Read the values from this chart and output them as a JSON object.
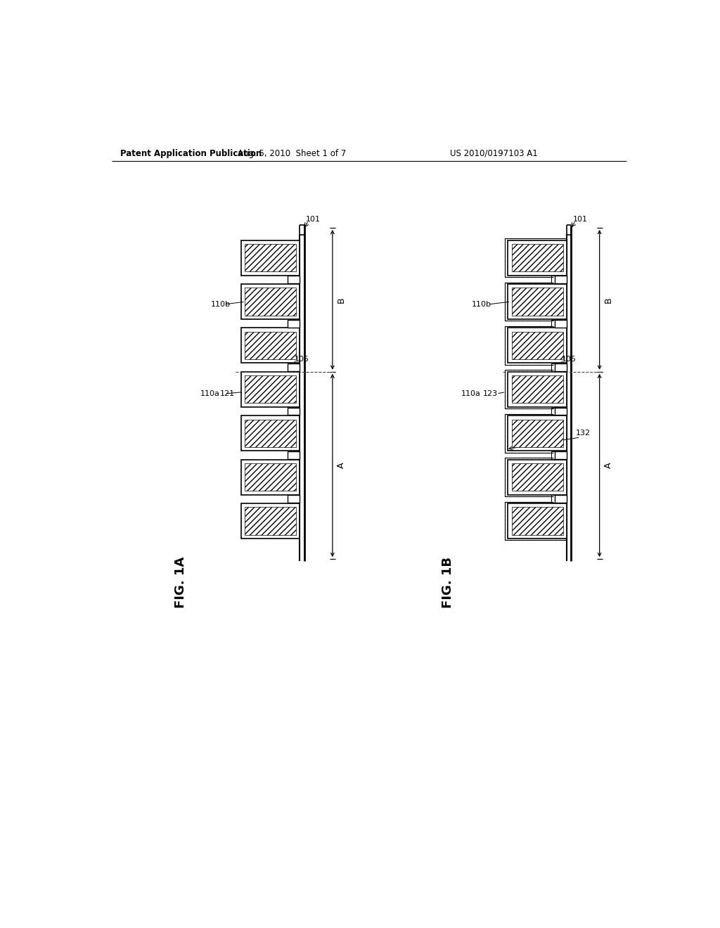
{
  "background_color": "#ffffff",
  "header_left": "Patent Application Publication",
  "header_mid": "Aug. 5, 2010  Sheet 1 of 7",
  "header_right": "US 2010/0197103 A1",
  "fig1a_label": "FIG. 1A",
  "fig1b_label": "FIG. 1B",
  "label_101": "101",
  "label_A": "A",
  "label_B": "B",
  "label_110a": "110a",
  "label_121": "121",
  "label_105": "105",
  "label_110b": "110b",
  "label_123": "123",
  "label_132": "132",
  "hatch_pattern": "////",
  "line_color": "#000000"
}
